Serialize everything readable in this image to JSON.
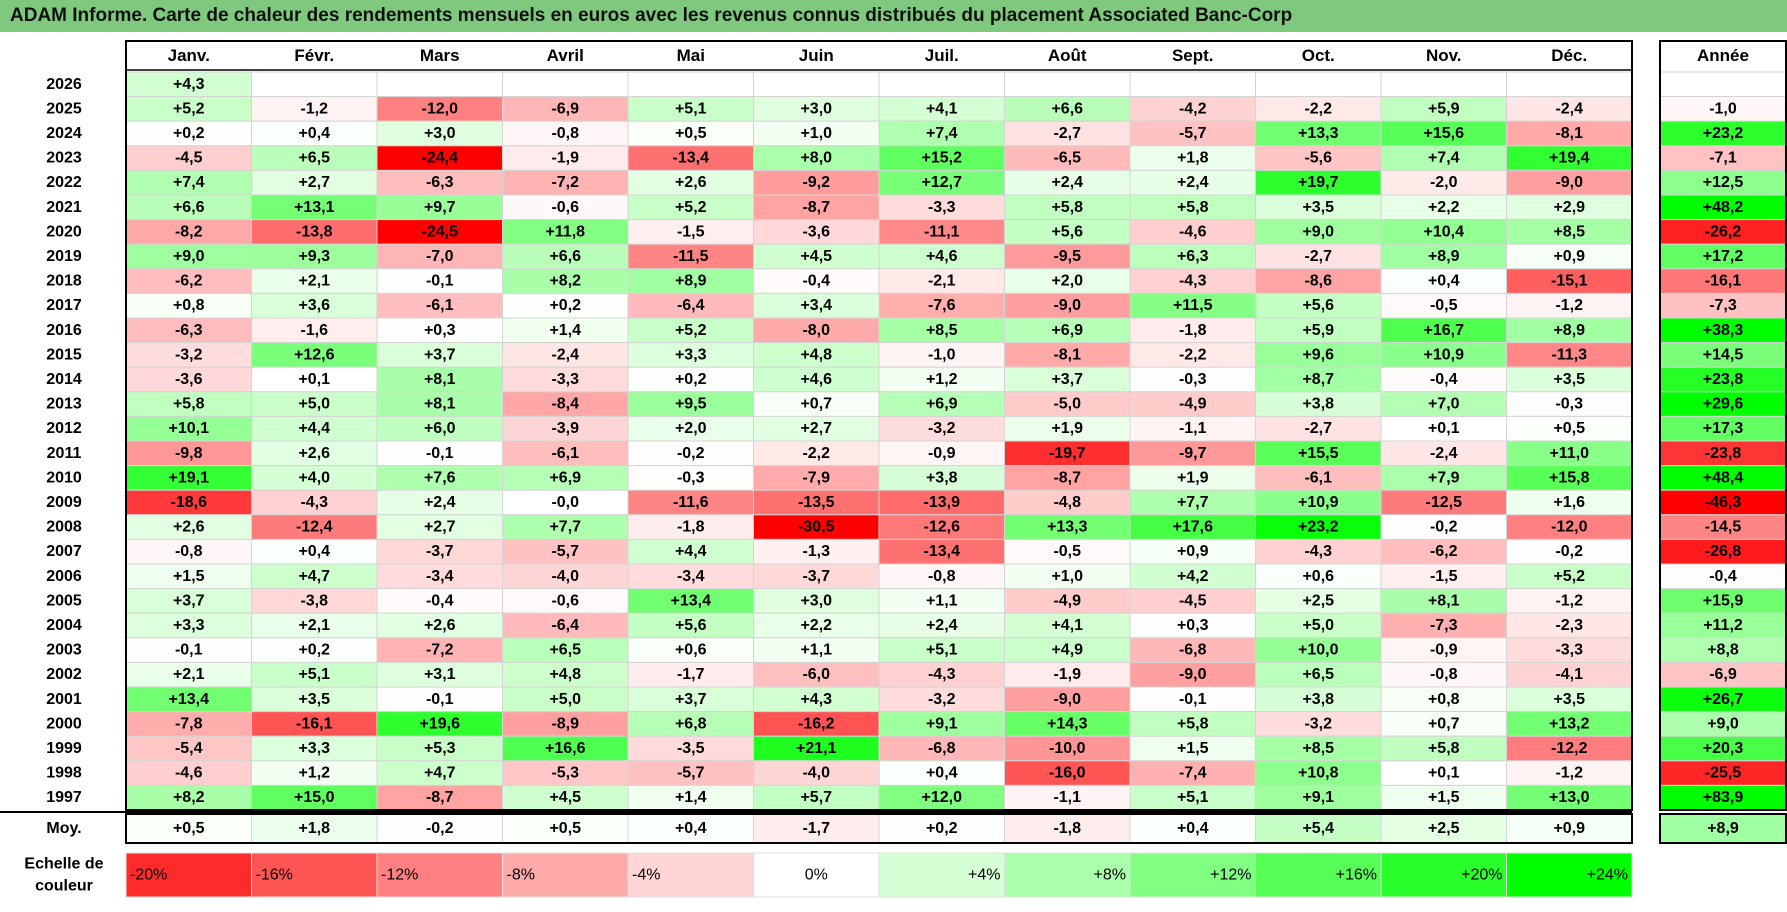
{
  "title": "ADAM Informe. Carte de chaleur des rendements mensuels en euros avec les revenus connus distribués du placement Associated Banc-Corp",
  "chart_data": {
    "type": "heatmap",
    "months": [
      "Janv.",
      "Févr.",
      "Mars",
      "Avril",
      "Mai",
      "Juin",
      "Juil.",
      "Août",
      "Sept.",
      "Oct.",
      "Nov.",
      "Déc."
    ],
    "year_header": "Année",
    "rows": [
      {
        "year": "2026",
        "values": [
          "+4,3",
          null,
          null,
          null,
          null,
          null,
          null,
          null,
          null,
          null,
          null,
          null
        ],
        "annual": null
      },
      {
        "year": "2025",
        "values": [
          "+5,2",
          "-1,2",
          "-12,0",
          "-6,9",
          "+5,1",
          "+3,0",
          "+4,1",
          "+6,6",
          "-4,2",
          "-2,2",
          "+5,9",
          "-2,4"
        ],
        "annual": "-1,0"
      },
      {
        "year": "2024",
        "values": [
          "+0,2",
          "+0,4",
          "+3,0",
          "-0,8",
          "+0,5",
          "+1,0",
          "+7,4",
          "-2,7",
          "-5,7",
          "+13,3",
          "+15,6",
          "-8,1"
        ],
        "annual": "+23,2"
      },
      {
        "year": "2023",
        "values": [
          "-4,5",
          "+6,5",
          "-24,4",
          "-1,9",
          "-13,4",
          "+8,0",
          "+15,2",
          "-6,5",
          "+1,8",
          "-5,6",
          "+7,4",
          "+19,4"
        ],
        "annual": "-7,1"
      },
      {
        "year": "2022",
        "values": [
          "+7,4",
          "+2,7",
          "-6,3",
          "-7,2",
          "+2,6",
          "-9,2",
          "+12,7",
          "+2,4",
          "+2,4",
          "+19,7",
          "-2,0",
          "-9,0"
        ],
        "annual": "+12,5"
      },
      {
        "year": "2021",
        "values": [
          "+6,6",
          "+13,1",
          "+9,7",
          "-0,6",
          "+5,2",
          "-8,7",
          "-3,3",
          "+5,8",
          "+5,8",
          "+3,5",
          "+2,2",
          "+2,9"
        ],
        "annual": "+48,2"
      },
      {
        "year": "2020",
        "values": [
          "-8,2",
          "-13,8",
          "-24,5",
          "+11,8",
          "-1,5",
          "-3,6",
          "-11,1",
          "+5,6",
          "-4,6",
          "+9,0",
          "+10,4",
          "+8,5"
        ],
        "annual": "-26,2"
      },
      {
        "year": "2019",
        "values": [
          "+9,0",
          "+9,3",
          "-7,0",
          "+6,6",
          "-11,5",
          "+4,5",
          "+4,6",
          "-9,5",
          "+6,3",
          "-2,7",
          "+8,9",
          "+0,9"
        ],
        "annual": "+17,2"
      },
      {
        "year": "2018",
        "values": [
          "-6,2",
          "+2,1",
          "-0,1",
          "+8,2",
          "+8,9",
          "-0,4",
          "-2,1",
          "+2,0",
          "-4,3",
          "-8,6",
          "+0,4",
          "-15,1"
        ],
        "annual": "-16,1"
      },
      {
        "year": "2017",
        "values": [
          "+0,8",
          "+3,6",
          "-6,1",
          "+0,2",
          "-6,4",
          "+3,4",
          "-7,6",
          "-9,0",
          "+11,5",
          "+5,6",
          "-0,5",
          "-1,2"
        ],
        "annual": "-7,3"
      },
      {
        "year": "2016",
        "values": [
          "-6,3",
          "-1,6",
          "+0,3",
          "+1,4",
          "+5,2",
          "-8,0",
          "+8,5",
          "+6,9",
          "-1,8",
          "+5,9",
          "+16,7",
          "+8,9"
        ],
        "annual": "+38,3"
      },
      {
        "year": "2015",
        "values": [
          "-3,2",
          "+12,6",
          "+3,7",
          "-2,4",
          "+3,3",
          "+4,8",
          "-1,0",
          "-8,1",
          "-2,2",
          "+9,6",
          "+10,9",
          "-11,3"
        ],
        "annual": "+14,5"
      },
      {
        "year": "2014",
        "values": [
          "-3,6",
          "+0,1",
          "+8,1",
          "-3,3",
          "+0,2",
          "+4,6",
          "+1,2",
          "+3,7",
          "-0,3",
          "+8,7",
          "-0,4",
          "+3,5"
        ],
        "annual": "+23,8"
      },
      {
        "year": "2013",
        "values": [
          "+5,8",
          "+5,0",
          "+8,1",
          "-8,4",
          "+9,5",
          "+0,7",
          "+6,9",
          "-5,0",
          "-4,9",
          "+3,8",
          "+7,0",
          "-0,3"
        ],
        "annual": "+29,6"
      },
      {
        "year": "2012",
        "values": [
          "+10,1",
          "+4,4",
          "+6,0",
          "-3,9",
          "+2,0",
          "+2,7",
          "-3,2",
          "+1,9",
          "-1,1",
          "-2,7",
          "+0,1",
          "+0,5"
        ],
        "annual": "+17,3"
      },
      {
        "year": "2011",
        "values": [
          "-9,8",
          "+2,6",
          "-0,1",
          "-6,1",
          "-0,2",
          "-2,2",
          "-0,9",
          "-19,7",
          "-9,7",
          "+15,5",
          "-2,4",
          "+11,0"
        ],
        "annual": "-23,8"
      },
      {
        "year": "2010",
        "values": [
          "+19,1",
          "+4,0",
          "+7,6",
          "+6,9",
          "-0,3",
          "-7,9",
          "+3,8",
          "-8,7",
          "+1,9",
          "-6,1",
          "+7,9",
          "+15,8"
        ],
        "annual": "+48,4"
      },
      {
        "year": "2009",
        "values": [
          "-18,6",
          "-4,3",
          "+2,4",
          "-0,0",
          "-11,6",
          "-13,5",
          "-13,9",
          "-4,8",
          "+7,7",
          "+10,9",
          "-12,5",
          "+1,6"
        ],
        "annual": "-46,3"
      },
      {
        "year": "2008",
        "values": [
          "+2,6",
          "-12,4",
          "+2,7",
          "+7,7",
          "-1,8",
          "-30,5",
          "-12,6",
          "+13,3",
          "+17,6",
          "+23,2",
          "-0,2",
          "-12,0"
        ],
        "annual": "-14,5"
      },
      {
        "year": "2007",
        "values": [
          "-0,8",
          "+0,4",
          "-3,7",
          "-5,7",
          "+4,4",
          "-1,3",
          "-13,4",
          "-0,5",
          "+0,9",
          "-4,3",
          "-6,2",
          "-0,2"
        ],
        "annual": "-26,8"
      },
      {
        "year": "2006",
        "values": [
          "+1,5",
          "+4,7",
          "-3,4",
          "-4,0",
          "-3,4",
          "-3,7",
          "-0,8",
          "+1,0",
          "+4,2",
          "+0,6",
          "-1,5",
          "+5,2"
        ],
        "annual": "-0,4"
      },
      {
        "year": "2005",
        "values": [
          "+3,7",
          "-3,8",
          "-0,4",
          "-0,6",
          "+13,4",
          "+3,0",
          "+1,1",
          "-4,9",
          "-4,5",
          "+2,5",
          "+8,1",
          "-1,2"
        ],
        "annual": "+15,9"
      },
      {
        "year": "2004",
        "values": [
          "+3,3",
          "+2,1",
          "+2,6",
          "-6,4",
          "+5,6",
          "+2,2",
          "+2,4",
          "+4,1",
          "+0,3",
          "+5,0",
          "-7,3",
          "-2,3"
        ],
        "annual": "+11,2"
      },
      {
        "year": "2003",
        "values": [
          "-0,1",
          "+0,2",
          "-7,2",
          "+6,5",
          "+0,6",
          "+1,1",
          "+5,1",
          "+4,9",
          "-6,8",
          "+10,0",
          "-0,9",
          "-3,3"
        ],
        "annual": "+8,8"
      },
      {
        "year": "2002",
        "values": [
          "+2,1",
          "+5,1",
          "+3,1",
          "+4,8",
          "-1,7",
          "-6,0",
          "-4,3",
          "-1,9",
          "-9,0",
          "+6,5",
          "-0,8",
          "-4,1"
        ],
        "annual": "-6,9"
      },
      {
        "year": "2001",
        "values": [
          "+13,4",
          "+3,5",
          "-0,1",
          "+5,0",
          "+3,7",
          "+4,3",
          "-3,2",
          "-9,0",
          "-0,1",
          "+3,8",
          "+0,8",
          "+3,5"
        ],
        "annual": "+26,7"
      },
      {
        "year": "2000",
        "values": [
          "-7,8",
          "-16,1",
          "+19,6",
          "-8,9",
          "+6,8",
          "-16,2",
          "+9,1",
          "+14,3",
          "+5,8",
          "-3,2",
          "+0,7",
          "+13,2"
        ],
        "annual": "+9,0"
      },
      {
        "year": "1999",
        "values": [
          "-5,4",
          "+3,3",
          "+5,3",
          "+16,6",
          "-3,5",
          "+21,1",
          "-6,8",
          "-10,0",
          "+1,5",
          "+8,5",
          "+5,8",
          "-12,2"
        ],
        "annual": "+20,3"
      },
      {
        "year": "1998",
        "values": [
          "-4,6",
          "+1,2",
          "+4,7",
          "-5,3",
          "-5,7",
          "-4,0",
          "+0,4",
          "-16,0",
          "-7,4",
          "+10,8",
          "+0,1",
          "-1,2"
        ],
        "annual": "-25,5"
      },
      {
        "year": "1997",
        "values": [
          "+8,2",
          "+15,0",
          "-8,7",
          "+4,5",
          "+1,4",
          "+5,7",
          "+12,0",
          "-1,1",
          "+5,1",
          "+9,1",
          "+1,5",
          "+13,0"
        ],
        "annual": "+83,9"
      }
    ],
    "average": {
      "label": "Moy.",
      "values": [
        "+0,5",
        "+1,8",
        "-0,2",
        "+0,5",
        "+0,4",
        "-1,7",
        "+0,2",
        "-1,8",
        "+0,4",
        "+5,4",
        "+2,5",
        "+0,9"
      ],
      "annual": "+8,9"
    },
    "legend": {
      "label_line1": "Echelle de",
      "label_line2": "couleur",
      "steps": [
        "-20%",
        "-16%",
        "-12%",
        "-8%",
        "-4%",
        "0%",
        "+4%",
        "+8%",
        "+12%",
        "+16%",
        "+20%",
        "+24%"
      ],
      "step_values": [
        -20,
        -16,
        -12,
        -8,
        -4,
        0,
        4,
        8,
        12,
        16,
        20,
        24
      ]
    },
    "colors": {
      "negative": "#ff0000",
      "neutral": "#ffffff",
      "positive": "#00ff00",
      "title_bar": "#7fc97f"
    }
  }
}
